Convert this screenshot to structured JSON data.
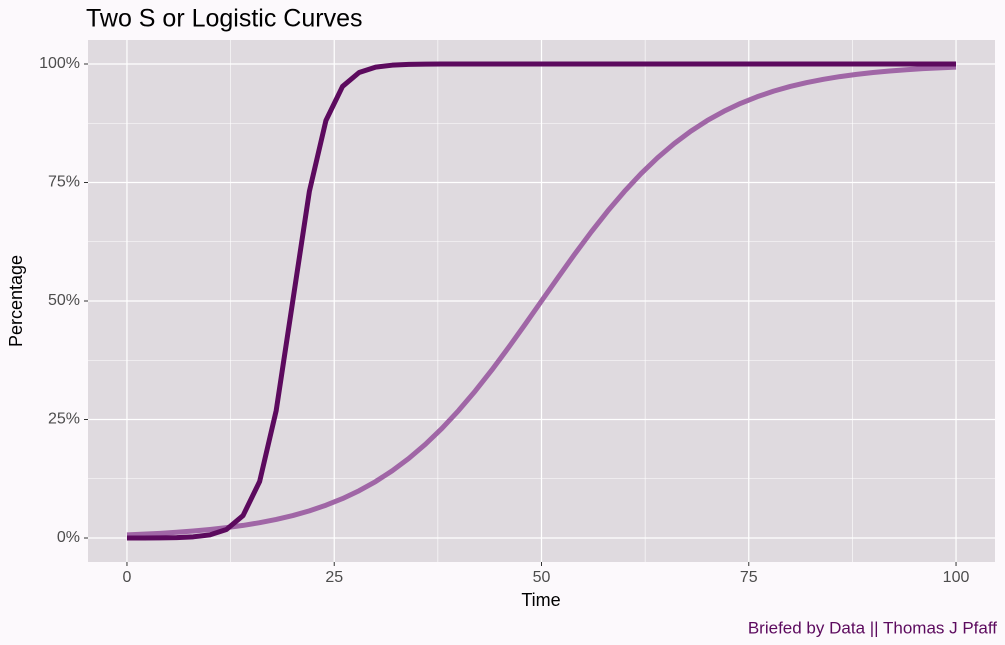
{
  "chart_data": {
    "type": "line",
    "title": "Two S or Logistic Curves",
    "x_label": "Time",
    "y_label": "Percentage",
    "caption": "Briefed by Data || Thomas J Pfaff",
    "x": [
      0,
      2,
      4,
      6,
      8,
      10,
      12,
      14,
      16,
      18,
      20,
      22,
      24,
      26,
      28,
      30,
      32,
      34,
      36,
      38,
      40,
      42,
      44,
      46,
      48,
      50,
      52,
      54,
      56,
      58,
      60,
      62,
      64,
      66,
      68,
      70,
      72,
      74,
      76,
      78,
      80,
      82,
      84,
      86,
      88,
      90,
      92,
      94,
      96,
      98,
      100
    ],
    "series": [
      {
        "color": "#a066a6",
        "values": [
          0.67,
          0.82,
          0.99,
          1.21,
          1.48,
          1.8,
          2.19,
          2.66,
          3.23,
          3.92,
          4.74,
          5.73,
          6.92,
          8.32,
          9.98,
          11.92,
          14.19,
          16.8,
          19.78,
          23.15,
          26.89,
          31.0,
          35.43,
          40.13,
          45.02,
          50,
          54.98,
          59.87,
          64.57,
          69.0,
          73.11,
          76.85,
          80.22,
          83.2,
          85.81,
          88.08,
          90.02,
          91.68,
          93.08,
          94.27,
          95.26,
          96.08,
          96.77,
          97.34,
          97.81,
          98.2,
          98.52,
          98.79,
          99.01,
          99.18,
          99.33
        ]
      },
      {
        "color": "#5c0a5e",
        "values": [
          0,
          0.01,
          0.03,
          0.09,
          0.25,
          0.67,
          1.8,
          4.74,
          11.92,
          26.89,
          50,
          73.11,
          88.08,
          95.26,
          98.2,
          99.33,
          99.75,
          99.91,
          99.97,
          99.99,
          100,
          100,
          100,
          100,
          100,
          100,
          100,
          100,
          100,
          100,
          100,
          100,
          100,
          100,
          100,
          100,
          100,
          100,
          100,
          100,
          100,
          100,
          100,
          100,
          100,
          100,
          100,
          100,
          100,
          100,
          100
        ]
      }
    ],
    "xlim": [
      -4.7,
      104.7
    ],
    "ylim": [
      -5.06,
      105.06
    ],
    "xticks": [
      0,
      25,
      50,
      75,
      100
    ],
    "yticks": [
      {
        "value": 0,
        "label": "0%"
      },
      {
        "value": 25,
        "label": "25%"
      },
      {
        "value": 50,
        "label": "50%"
      },
      {
        "value": 75,
        "label": "75%"
      },
      {
        "value": 100,
        "label": "100%"
      }
    ],
    "minor_xticks": [
      12.5,
      37.5,
      62.5,
      87.5
    ],
    "minor_yticks": [
      12.5,
      37.5,
      62.5,
      87.5
    ],
    "grid": true,
    "line_width": 5,
    "caption_color": "#5c0a5e"
  }
}
